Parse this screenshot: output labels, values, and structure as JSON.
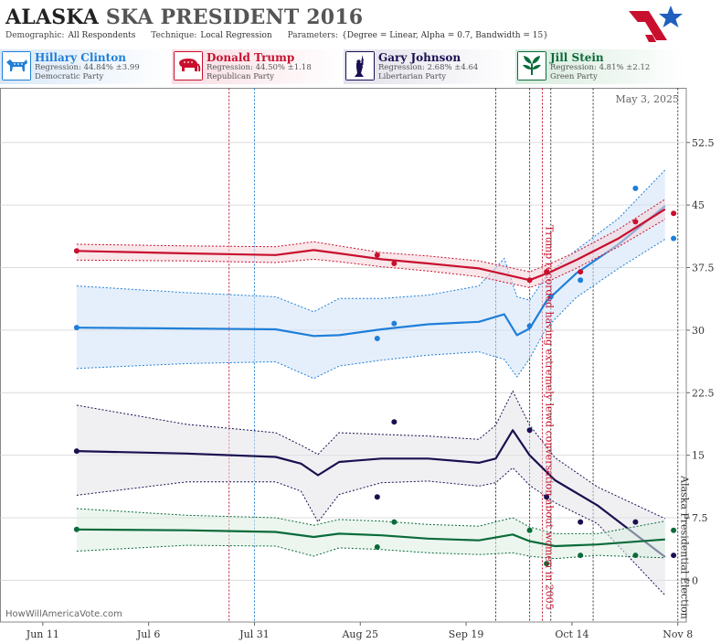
{
  "header": {
    "state": "ALASKA",
    "race": "SKA PRESIDENT 2016",
    "demographic_label": "Demographic:",
    "demographic": "All Respondents",
    "technique_label": "Technique:",
    "technique": "Local Regression",
    "parameters_label": "Parameters:",
    "parameters": "{Degree = Linear, Alpha = 0.7, Bandwidth = 15}"
  },
  "candidates": [
    {
      "name": "Hillary Clinton",
      "regression": "Regression: 44.84% ±3.99",
      "party": "Democratic Party",
      "color": "#1f7fd8",
      "icon": "donkey-icon"
    },
    {
      "name": "Donald Trump",
      "regression": "Regression: 44.50% ±1.18",
      "party": "Republican Party",
      "color": "#c8102e",
      "icon": "elephant-icon"
    },
    {
      "name": "Gary Johnson",
      "regression": "Regression: 2.68% ±4.64",
      "party": "Libertarian Party",
      "color": "#1a1050",
      "icon": "liberty-icon"
    },
    {
      "name": "Jill Stein",
      "regression": "Regression: 4.81% ±2.12",
      "party": "Green Party",
      "color": "#0a6b3a",
      "icon": "leaf-icon"
    }
  ],
  "chart_data": {
    "type": "line",
    "date_stamp": "May 3, 2025",
    "watermark": "HowWillAmericaVote.com",
    "x_range": [
      "2016-06-01",
      "2016-11-10"
    ],
    "x_ticks": [
      {
        "date": "2016-06-11",
        "label": "Jun 11"
      },
      {
        "date": "2016-07-06",
        "label": "Jul 6"
      },
      {
        "date": "2016-07-31",
        "label": "Jul 31"
      },
      {
        "date": "2016-08-25",
        "label": "Aug 25"
      },
      {
        "date": "2016-09-19",
        "label": "Sep 19"
      },
      {
        "date": "2016-10-14",
        "label": "Oct 14"
      },
      {
        "date": "2016-11-08",
        "label": "Nov 8"
      }
    ],
    "ylim": [
      -5,
      59
    ],
    "y_ticks": [
      0,
      7.5,
      15,
      22.5,
      30,
      37.5,
      45,
      52.5
    ],
    "events": [
      {
        "date": "2016-07-25",
        "color": "#c8102e",
        "label": ""
      },
      {
        "date": "2016-07-31",
        "color": "#1f7fd8",
        "label": ""
      },
      {
        "date": "2016-09-26",
        "color": "#333333",
        "label": ""
      },
      {
        "date": "2016-10-04",
        "color": "#333333",
        "label": ""
      },
      {
        "date": "2016-10-07",
        "color": "#c8102e",
        "label": "Trump recorded having extremely lewd conversation about women in 2005"
      },
      {
        "date": "2016-10-09",
        "color": "#333333",
        "label": ""
      },
      {
        "date": "2016-10-19",
        "color": "#333333",
        "label": ""
      },
      {
        "date": "2016-11-08",
        "color": "#333333",
        "label": "Alaska Presidential Election"
      }
    ],
    "series": [
      {
        "name": "Clinton",
        "color": "#1f7fd8",
        "band": "#cfe2f7",
        "line": [
          [
            "2016-06-19",
            30.3
          ],
          [
            "2016-07-15",
            30.2
          ],
          [
            "2016-08-05",
            30.1
          ],
          [
            "2016-08-14",
            29.3
          ],
          [
            "2016-08-20",
            29.4
          ],
          [
            "2016-08-30",
            30.1
          ],
          [
            "2016-09-10",
            30.7
          ],
          [
            "2016-09-22",
            31.0
          ],
          [
            "2016-09-28",
            31.9
          ],
          [
            "2016-10-01",
            29.4
          ],
          [
            "2016-10-04",
            30.2
          ],
          [
            "2016-10-08",
            33.5
          ],
          [
            "2016-10-15",
            36.8
          ],
          [
            "2016-10-25",
            40.3
          ],
          [
            "2016-11-05",
            44.9
          ]
        ],
        "upper": [
          [
            "2016-06-19",
            35.3
          ],
          [
            "2016-07-15",
            34.5
          ],
          [
            "2016-08-05",
            34.0
          ],
          [
            "2016-08-14",
            32.2
          ],
          [
            "2016-08-20",
            33.8
          ],
          [
            "2016-08-30",
            33.8
          ],
          [
            "2016-09-10",
            34.2
          ],
          [
            "2016-09-22",
            35.3
          ],
          [
            "2016-09-28",
            38.6
          ],
          [
            "2016-10-01",
            34.0
          ],
          [
            "2016-10-04",
            33.6
          ],
          [
            "2016-10-08",
            36.5
          ],
          [
            "2016-10-15",
            39.6
          ],
          [
            "2016-10-25",
            43.4
          ],
          [
            "2016-11-05",
            49.2
          ]
        ],
        "lower": [
          [
            "2016-06-19",
            25.4
          ],
          [
            "2016-07-15",
            26.0
          ],
          [
            "2016-08-05",
            26.2
          ],
          [
            "2016-08-14",
            24.2
          ],
          [
            "2016-08-20",
            25.7
          ],
          [
            "2016-08-30",
            26.4
          ],
          [
            "2016-09-10",
            27.0
          ],
          [
            "2016-09-22",
            27.4
          ],
          [
            "2016-09-28",
            26.5
          ],
          [
            "2016-10-01",
            24.4
          ],
          [
            "2016-10-04",
            26.6
          ],
          [
            "2016-10-08",
            30.3
          ],
          [
            "2016-10-15",
            33.9
          ],
          [
            "2016-10-25",
            37.4
          ],
          [
            "2016-11-05",
            40.9
          ]
        ],
        "points": [
          [
            "2016-06-19",
            30.3
          ],
          [
            "2016-08-29",
            29.0
          ],
          [
            "2016-09-02",
            30.8
          ],
          [
            "2016-10-04",
            30.5
          ],
          [
            "2016-10-09",
            34.0
          ],
          [
            "2016-10-16",
            36.0
          ],
          [
            "2016-10-29",
            47.0
          ],
          [
            "2016-11-07",
            41.0
          ]
        ]
      },
      {
        "name": "Trump",
        "color": "#c8102e",
        "band": "#f4d3d9",
        "line": [
          [
            "2016-06-19",
            39.5
          ],
          [
            "2016-07-15",
            39.2
          ],
          [
            "2016-08-05",
            39.0
          ],
          [
            "2016-08-14",
            39.6
          ],
          [
            "2016-08-20",
            39.2
          ],
          [
            "2016-08-30",
            38.5
          ],
          [
            "2016-09-10",
            38.0
          ],
          [
            "2016-09-22",
            37.4
          ],
          [
            "2016-10-04",
            36.0
          ],
          [
            "2016-10-09",
            37.0
          ],
          [
            "2016-10-15",
            38.4
          ],
          [
            "2016-10-25",
            41.0
          ],
          [
            "2016-11-05",
            44.5
          ]
        ],
        "upper": [
          [
            "2016-06-19",
            40.3
          ],
          [
            "2016-07-15",
            40.1
          ],
          [
            "2016-08-05",
            40.0
          ],
          [
            "2016-08-14",
            40.6
          ],
          [
            "2016-08-20",
            40.1
          ],
          [
            "2016-08-30",
            39.3
          ],
          [
            "2016-09-10",
            38.9
          ],
          [
            "2016-09-22",
            38.3
          ],
          [
            "2016-10-04",
            37.0
          ],
          [
            "2016-10-09",
            38.0
          ],
          [
            "2016-10-15",
            39.4
          ],
          [
            "2016-10-25",
            42.1
          ],
          [
            "2016-11-05",
            45.7
          ]
        ],
        "lower": [
          [
            "2016-06-19",
            38.4
          ],
          [
            "2016-07-15",
            38.3
          ],
          [
            "2016-08-05",
            38.1
          ],
          [
            "2016-08-14",
            38.5
          ],
          [
            "2016-08-20",
            38.2
          ],
          [
            "2016-08-30",
            37.6
          ],
          [
            "2016-09-10",
            37.1
          ],
          [
            "2016-09-22",
            36.4
          ],
          [
            "2016-10-04",
            35.1
          ],
          [
            "2016-10-09",
            36.0
          ],
          [
            "2016-10-15",
            37.4
          ],
          [
            "2016-10-25",
            40.0
          ],
          [
            "2016-11-05",
            43.3
          ]
        ],
        "points": [
          [
            "2016-06-19",
            39.5
          ],
          [
            "2016-08-29",
            39.0
          ],
          [
            "2016-09-02",
            38.0
          ],
          [
            "2016-10-04",
            36.0
          ],
          [
            "2016-10-08",
            37.0
          ],
          [
            "2016-10-16",
            37.0
          ],
          [
            "2016-10-29",
            43.0
          ],
          [
            "2016-11-07",
            44.0
          ]
        ]
      },
      {
        "name": "Johnson",
        "color": "#1a1050",
        "band": "#e3e3ea",
        "line": [
          [
            "2016-06-19",
            15.5
          ],
          [
            "2016-07-15",
            15.2
          ],
          [
            "2016-08-05",
            14.8
          ],
          [
            "2016-08-11",
            14.0
          ],
          [
            "2016-08-15",
            12.6
          ],
          [
            "2016-08-20",
            14.2
          ],
          [
            "2016-08-30",
            14.6
          ],
          [
            "2016-09-10",
            14.6
          ],
          [
            "2016-09-22",
            14.1
          ],
          [
            "2016-09-26",
            14.6
          ],
          [
            "2016-09-30",
            18.0
          ],
          [
            "2016-10-04",
            15.0
          ],
          [
            "2016-10-10",
            12.0
          ],
          [
            "2016-10-20",
            9.0
          ],
          [
            "2016-11-05",
            2.8
          ]
        ],
        "upper": [
          [
            "2016-06-19",
            21.0
          ],
          [
            "2016-07-15",
            18.7
          ],
          [
            "2016-08-05",
            17.7
          ],
          [
            "2016-08-11",
            16.2
          ],
          [
            "2016-08-15",
            15.1
          ],
          [
            "2016-08-20",
            17.7
          ],
          [
            "2016-08-30",
            17.5
          ],
          [
            "2016-09-10",
            17.3
          ],
          [
            "2016-09-22",
            16.9
          ],
          [
            "2016-09-26",
            18.6
          ],
          [
            "2016-09-30",
            22.7
          ],
          [
            "2016-10-04",
            18.6
          ],
          [
            "2016-10-10",
            14.7
          ],
          [
            "2016-10-20",
            11.2
          ],
          [
            "2016-11-05",
            7.4
          ]
        ],
        "lower": [
          [
            "2016-06-19",
            10.2
          ],
          [
            "2016-07-15",
            11.8
          ],
          [
            "2016-08-05",
            11.8
          ],
          [
            "2016-08-11",
            10.7
          ],
          [
            "2016-08-15",
            7.0
          ],
          [
            "2016-08-20",
            10.3
          ],
          [
            "2016-08-30",
            11.7
          ],
          [
            "2016-09-10",
            11.9
          ],
          [
            "2016-09-22",
            11.3
          ],
          [
            "2016-09-26",
            11.7
          ],
          [
            "2016-09-30",
            13.5
          ],
          [
            "2016-10-04",
            11.4
          ],
          [
            "2016-10-10",
            9.3
          ],
          [
            "2016-10-20",
            6.8
          ],
          [
            "2016-11-05",
            -1.8
          ]
        ],
        "points": [
          [
            "2016-06-19",
            15.5
          ],
          [
            "2016-08-29",
            10.0
          ],
          [
            "2016-09-02",
            19.0
          ],
          [
            "2016-10-04",
            18.0
          ],
          [
            "2016-10-08",
            10.0
          ],
          [
            "2016-10-16",
            7.0
          ],
          [
            "2016-10-29",
            7.0
          ],
          [
            "2016-11-07",
            3.0
          ]
        ]
      },
      {
        "name": "Stein",
        "color": "#0a6b3a",
        "band": "#dceee2",
        "line": [
          [
            "2016-06-19",
            6.1
          ],
          [
            "2016-07-15",
            6.0
          ],
          [
            "2016-08-05",
            5.8
          ],
          [
            "2016-08-14",
            5.2
          ],
          [
            "2016-08-20",
            5.6
          ],
          [
            "2016-08-30",
            5.4
          ],
          [
            "2016-09-10",
            5.0
          ],
          [
            "2016-09-22",
            4.8
          ],
          [
            "2016-09-30",
            5.5
          ],
          [
            "2016-10-04",
            4.7
          ],
          [
            "2016-10-10",
            4.1
          ],
          [
            "2016-10-20",
            4.3
          ],
          [
            "2016-11-05",
            4.9
          ]
        ],
        "upper": [
          [
            "2016-06-19",
            8.6
          ],
          [
            "2016-07-15",
            7.8
          ],
          [
            "2016-08-05",
            7.5
          ],
          [
            "2016-08-14",
            6.6
          ],
          [
            "2016-08-20",
            7.3
          ],
          [
            "2016-08-30",
            7.1
          ],
          [
            "2016-09-10",
            6.7
          ],
          [
            "2016-09-22",
            6.5
          ],
          [
            "2016-09-30",
            7.5
          ],
          [
            "2016-10-04",
            6.4
          ],
          [
            "2016-10-10",
            5.6
          ],
          [
            "2016-10-20",
            5.6
          ],
          [
            "2016-11-05",
            7.1
          ]
        ],
        "lower": [
          [
            "2016-06-19",
            3.5
          ],
          [
            "2016-07-15",
            4.2
          ],
          [
            "2016-08-05",
            4.1
          ],
          [
            "2016-08-14",
            2.9
          ],
          [
            "2016-08-20",
            3.9
          ],
          [
            "2016-08-30",
            3.7
          ],
          [
            "2016-09-10",
            3.3
          ],
          [
            "2016-09-22",
            3.1
          ],
          [
            "2016-09-30",
            3.3
          ],
          [
            "2016-10-04",
            2.9
          ],
          [
            "2016-10-10",
            2.6
          ],
          [
            "2016-10-20",
            3.0
          ],
          [
            "2016-11-05",
            2.7
          ]
        ],
        "points": [
          [
            "2016-06-19",
            6.1
          ],
          [
            "2016-08-29",
            4.0
          ],
          [
            "2016-09-02",
            7.0
          ],
          [
            "2016-10-04",
            6.0
          ],
          [
            "2016-10-08",
            2.0
          ],
          [
            "2016-10-16",
            3.0
          ],
          [
            "2016-10-29",
            3.0
          ],
          [
            "2016-11-07",
            6.0
          ]
        ]
      }
    ]
  }
}
